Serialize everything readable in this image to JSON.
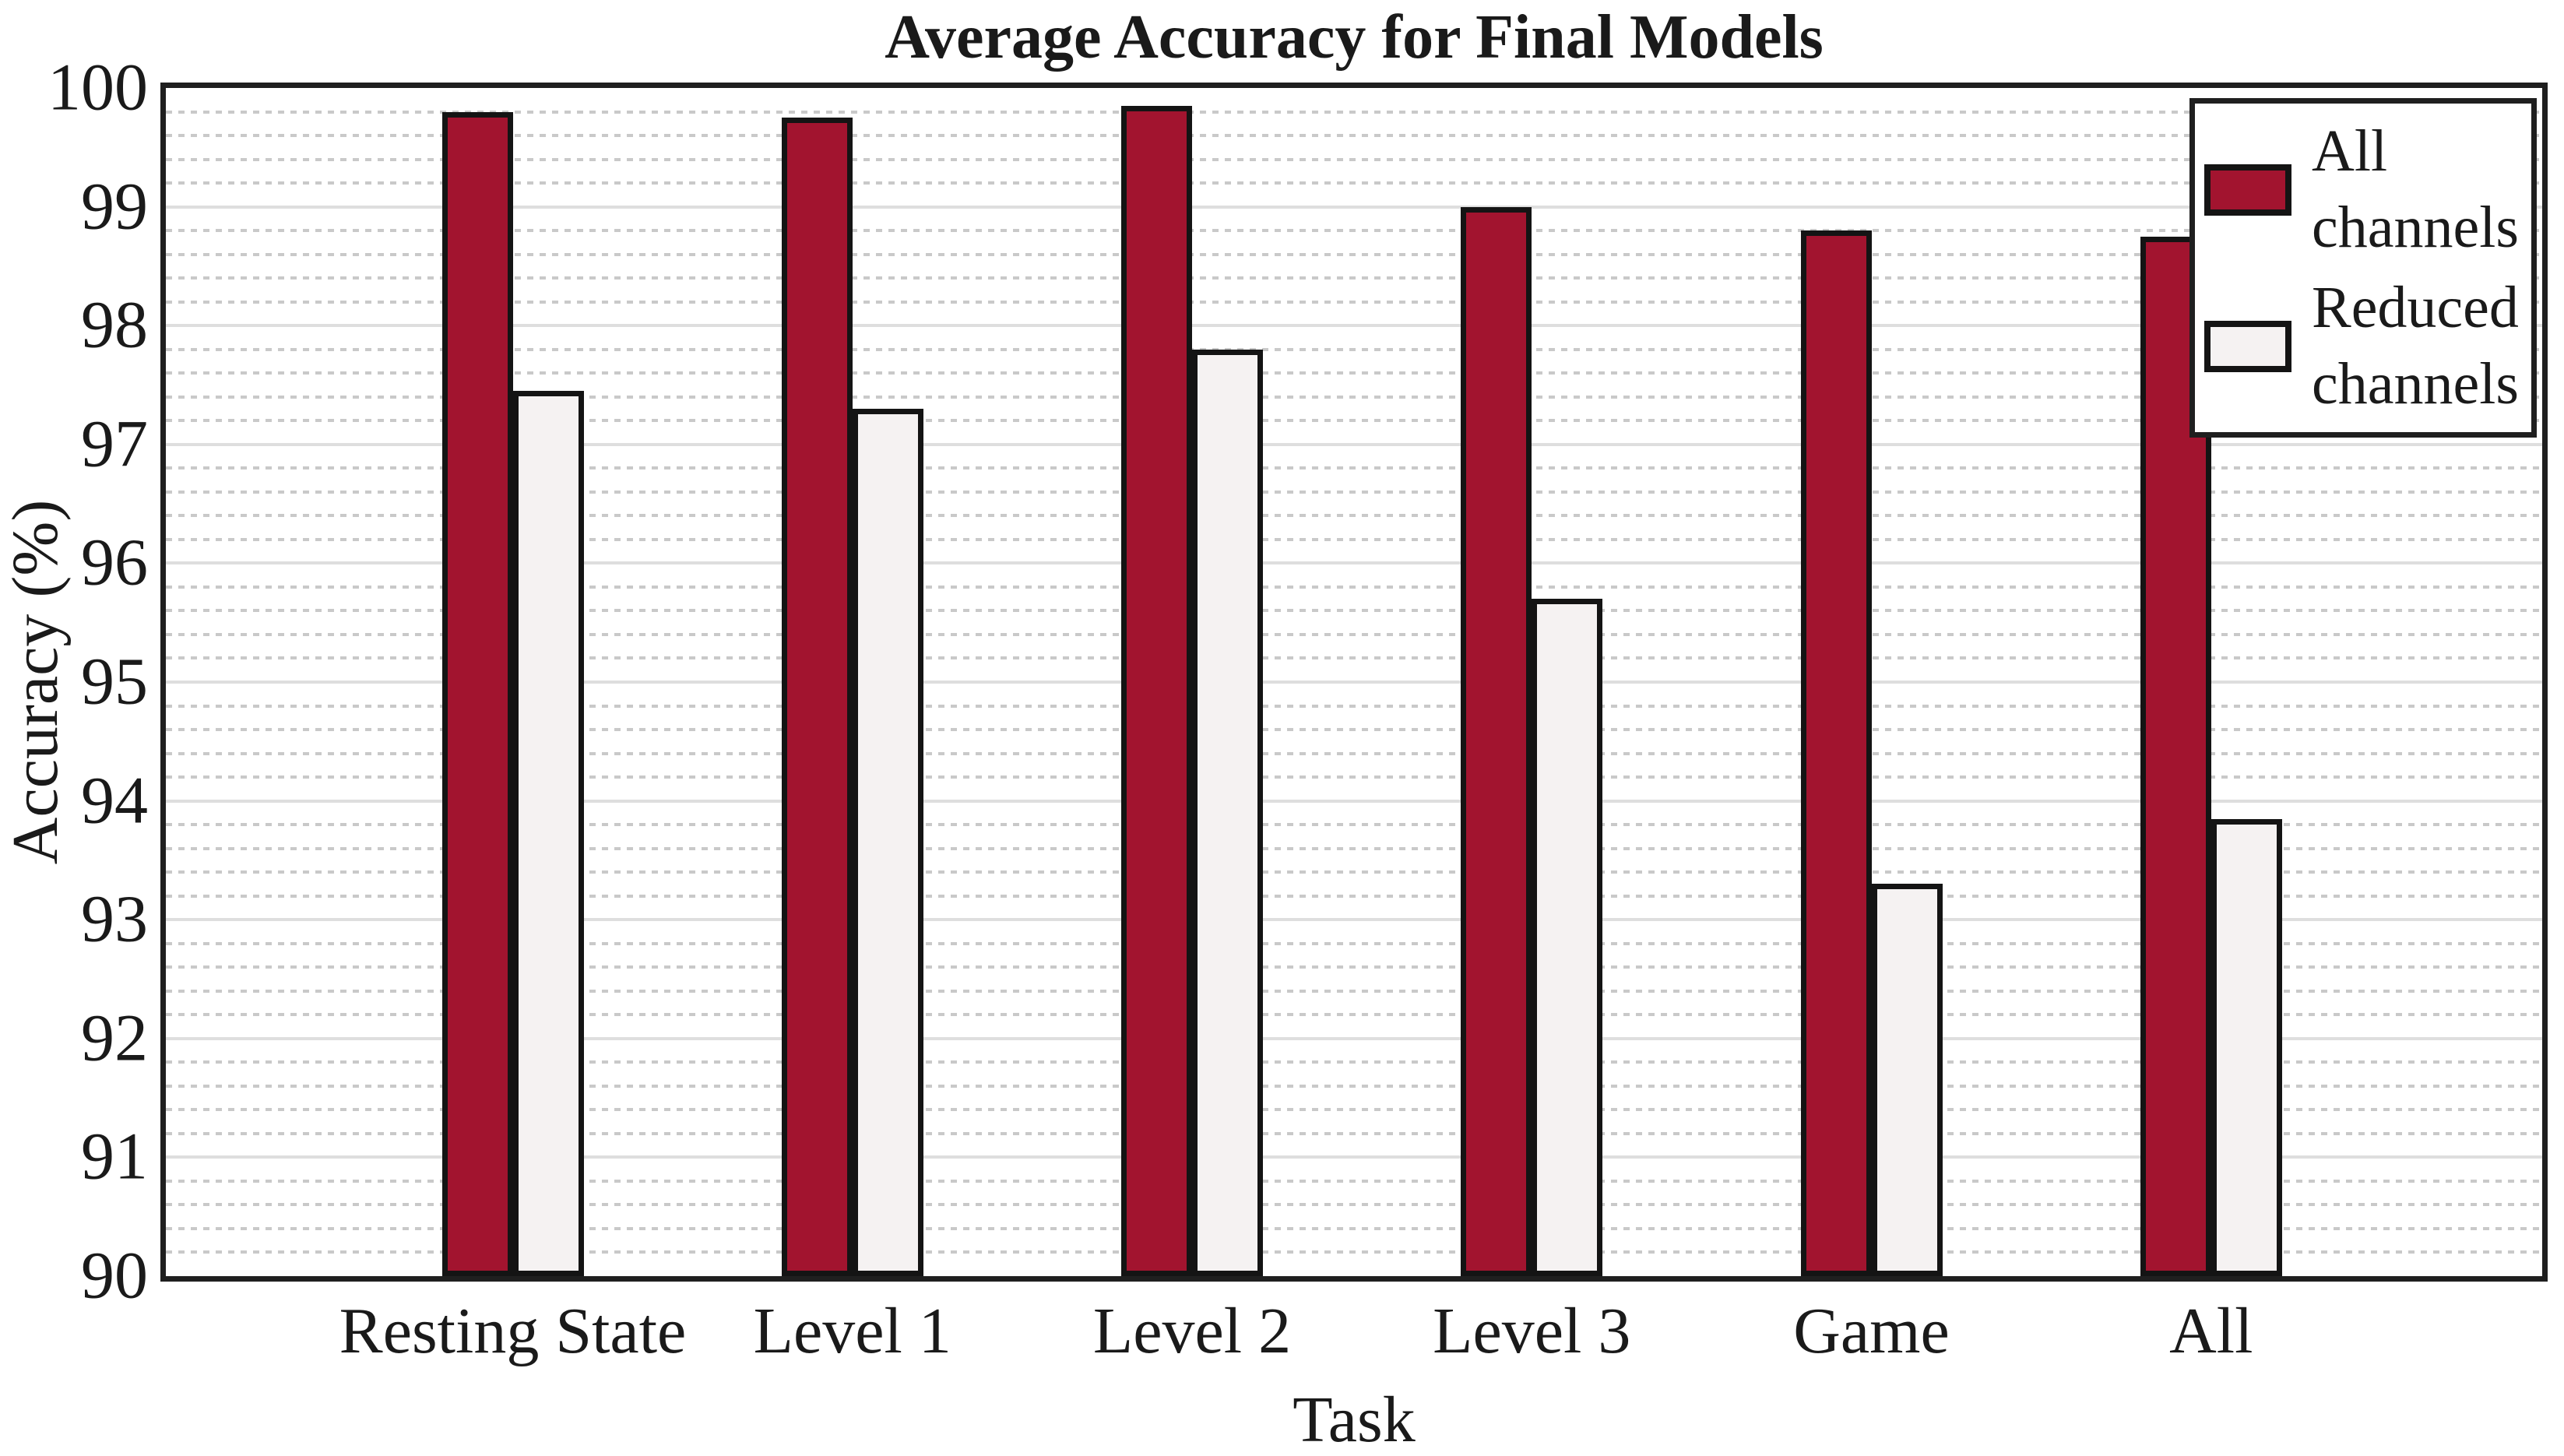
{
  "figure": {
    "title": "Average Accuracy for Final Models",
    "x_axis_title": "Task",
    "y_axis_title": "Accuracy (%)"
  },
  "chart_data": {
    "type": "bar",
    "title": "Average Accuracy for Final Models",
    "xlabel": "Task",
    "ylabel": "Accuracy (%)",
    "categories": [
      "Resting State",
      "Level 1",
      "Level 2",
      "Level 3",
      "Game",
      "All"
    ],
    "series": [
      {
        "name": "All channels",
        "color": "#A2142F",
        "values": [
          99.8,
          99.75,
          99.85,
          99.0,
          98.8,
          98.75
        ]
      },
      {
        "name": "Reduced channels",
        "color": "#F5F2F2",
        "values": [
          97.45,
          97.3,
          97.8,
          95.7,
          93.3,
          93.85
        ]
      }
    ],
    "ylim": [
      90,
      100
    ],
    "y_ticks": [
      100,
      99,
      98,
      97,
      96,
      95,
      94,
      93,
      92,
      91,
      90
    ],
    "y_major_step": 1,
    "y_minor_step": 0.2,
    "grid": "horizontal: solid major lines, dashed minor lines",
    "legend_position": "top-right",
    "legend": [
      "All channels",
      "Reduced channels"
    ],
    "colors": {
      "bar_outline": "#141414",
      "axis_border": "#1F1F1F",
      "major_grid": "#DEDEDE",
      "minor_grid": "#C9C9C9",
      "text": "#1A1A1A",
      "background": "#FFFFFF"
    }
  }
}
